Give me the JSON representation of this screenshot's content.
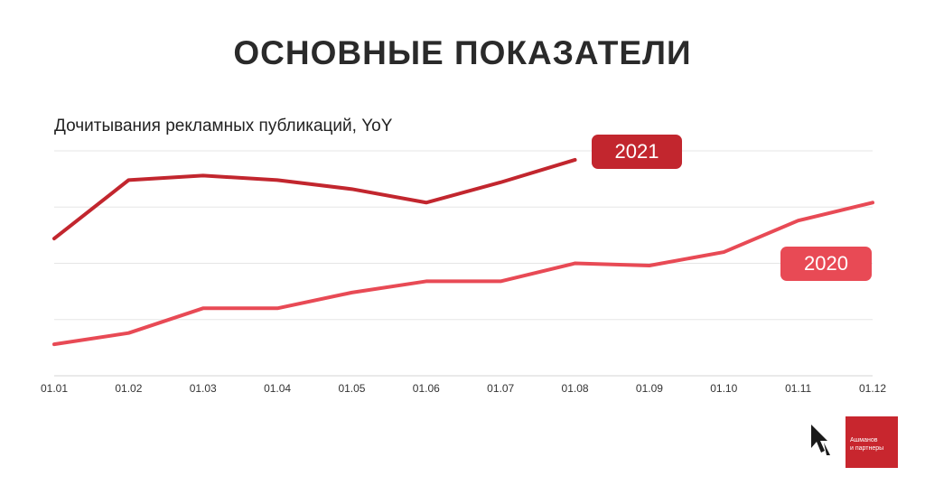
{
  "title": "ОСНОВНЫЕ ПОКАЗАТЕЛИ",
  "logo": {
    "line1": "Ашманов",
    "line2": "и партнеры",
    "colors": {
      "box": "#c8262e",
      "arrow": "#1a1a1a"
    }
  },
  "chart_data": {
    "type": "line",
    "title": "Дочитывания рекламных публикаций, YoY",
    "xlabel": "",
    "ylabel": "",
    "categories": [
      "01.01",
      "01.02",
      "01.03",
      "01.04",
      "01.05",
      "01.06",
      "01.07",
      "01.08",
      "01.09",
      "01.10",
      "01.11",
      "01.12"
    ],
    "ylim": [
      0,
      100
    ],
    "grid": true,
    "y_tick_labels": false,
    "series": [
      {
        "name": "2021",
        "color": "#c2262e",
        "values": [
          61,
          87,
          89,
          87,
          83,
          77,
          86,
          96,
          null,
          null,
          null,
          null
        ]
      },
      {
        "name": "2020",
        "color": "#e84a55",
        "values": [
          14,
          19,
          30,
          30,
          37,
          42,
          42,
          50,
          49,
          55,
          69,
          77
        ]
      }
    ]
  }
}
